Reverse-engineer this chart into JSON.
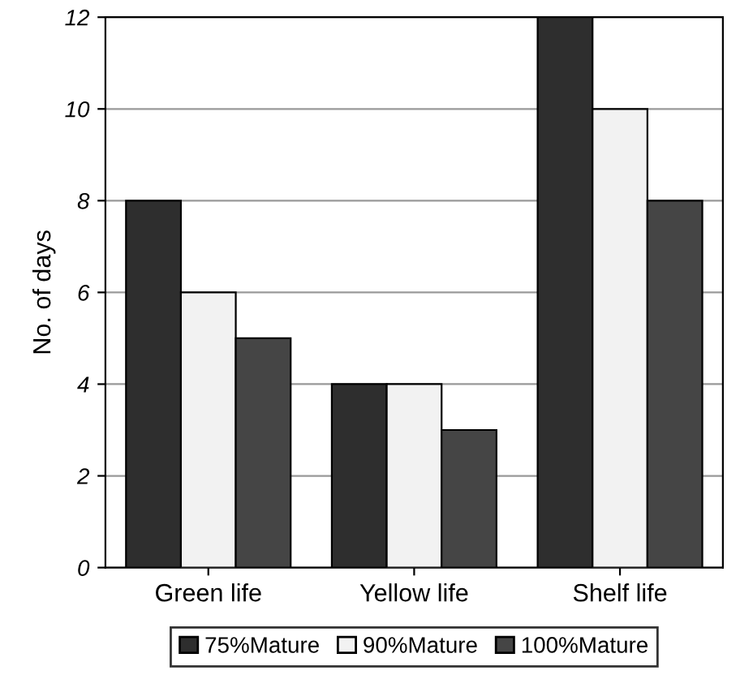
{
  "chart_data": {
    "type": "bar",
    "ylabel": "No. of days",
    "categories": [
      "Green life",
      "Yellow life",
      "Shelf life"
    ],
    "series": [
      {
        "name": "75%Mature",
        "color": "#2e2e2e",
        "values": [
          8,
          4,
          12
        ]
      },
      {
        "name": "90%Mature",
        "color": "#f2f2f2",
        "values": [
          6,
          4,
          10
        ]
      },
      {
        "name": "100%Mature",
        "color": "#454545",
        "values": [
          5,
          3,
          8
        ]
      }
    ],
    "ylim": [
      0,
      12
    ],
    "yticks": [
      0,
      2,
      4,
      6,
      8,
      10,
      12
    ],
    "grid": "y",
    "legend": "bottom"
  }
}
